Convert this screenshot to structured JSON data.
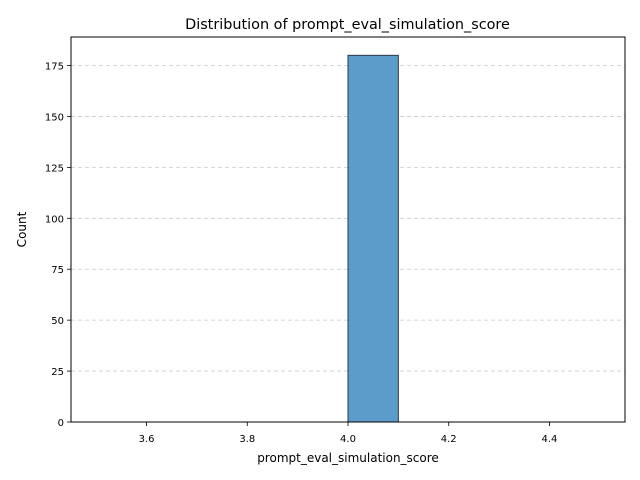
{
  "chart_data": {
    "type": "bar",
    "title": "Distribution of prompt_eval_simulation_score",
    "xlabel": "prompt_eval_simulation_score",
    "ylabel": "Count",
    "xlim": [
      3.45,
      4.55
    ],
    "ylim": [
      0,
      189
    ],
    "xticks": [
      "3.6",
      "3.8",
      "4.0",
      "4.2",
      "4.4"
    ],
    "yticks": [
      "0",
      "25",
      "50",
      "75",
      "100",
      "125",
      "150",
      "175"
    ],
    "grid": "horizontal dashed",
    "bins": [
      {
        "x0": 3.5,
        "x1": 3.6,
        "count": 0
      },
      {
        "x0": 3.6,
        "x1": 3.7,
        "count": 0
      },
      {
        "x0": 3.7,
        "x1": 3.8,
        "count": 0
      },
      {
        "x0": 3.8,
        "x1": 3.9,
        "count": 0
      },
      {
        "x0": 3.9,
        "x1": 4.0,
        "count": 0
      },
      {
        "x0": 4.0,
        "x1": 4.1,
        "count": 180
      },
      {
        "x0": 4.1,
        "x1": 4.2,
        "count": 0
      },
      {
        "x0": 4.2,
        "x1": 4.3,
        "count": 0
      },
      {
        "x0": 4.3,
        "x1": 4.4,
        "count": 0
      },
      {
        "x0": 4.4,
        "x1": 4.5,
        "count": 0
      }
    ],
    "colors": {
      "bar_fill": "#5b9ccb",
      "bar_edge": "#2b3b45",
      "grid": "#cccccc"
    }
  }
}
